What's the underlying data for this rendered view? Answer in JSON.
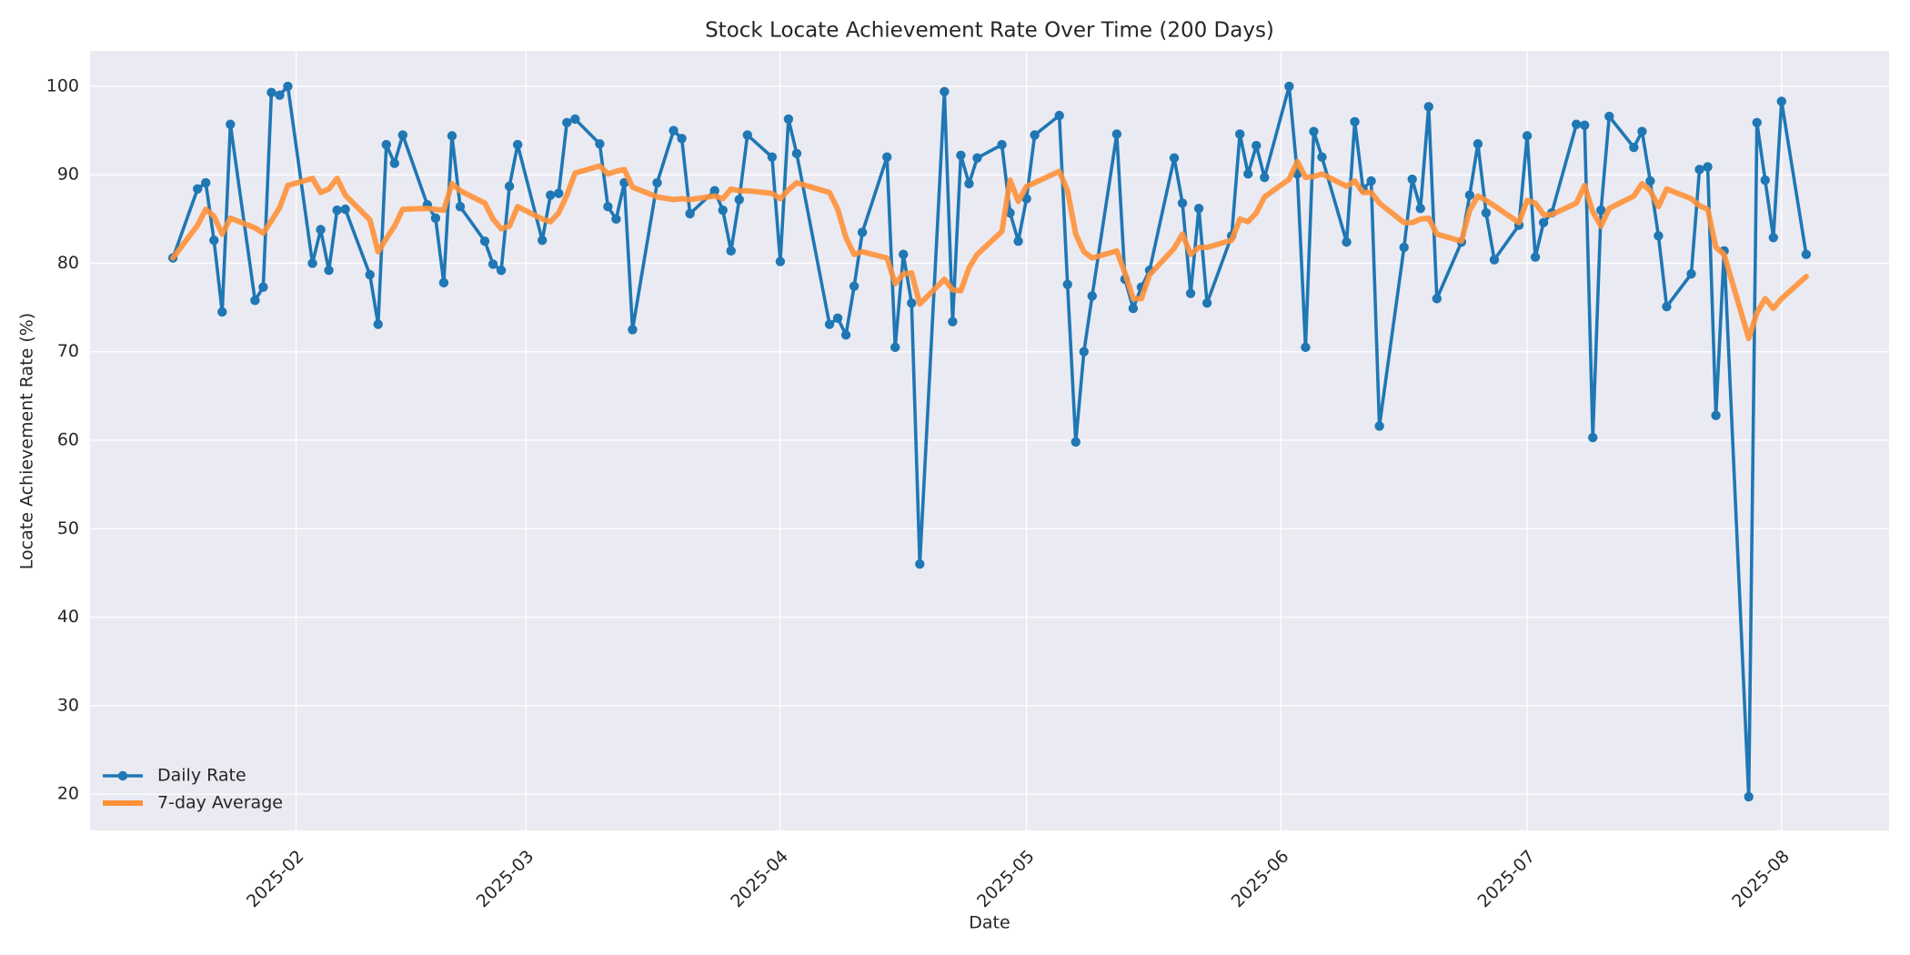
{
  "chart_data": {
    "type": "line",
    "title": "Stock Locate Achievement Rate Over Time (200 Days)",
    "x_label": "Date",
    "y_label": "Locate Achievement Rate (%)",
    "x": [
      17,
      20,
      21,
      22,
      23,
      24,
      27,
      28,
      29,
      30,
      31,
      34,
      35,
      36,
      37,
      38,
      41,
      42,
      43,
      44,
      45,
      48,
      49,
      50,
      51,
      52,
      55,
      56,
      57,
      58,
      59,
      62,
      63,
      64,
      65,
      66,
      69,
      70,
      71,
      72,
      73,
      76,
      78,
      79,
      80,
      83,
      84,
      85,
      86,
      87,
      90,
      91,
      92,
      93,
      97,
      98,
      99,
      100,
      101,
      104,
      105,
      106,
      107,
      108,
      111,
      112,
      113,
      114,
      115,
      118,
      119,
      120,
      121,
      122,
      125,
      126,
      127,
      128,
      129,
      132,
      133,
      134,
      135,
      136,
      139,
      140,
      141,
      142,
      143,
      146,
      147,
      148,
      149,
      150,
      153,
      154,
      155,
      156,
      157,
      160,
      161,
      162,
      163,
      164,
      167,
      168,
      169,
      170,
      171,
      174,
      175,
      176,
      177,
      178,
      181,
      182,
      183,
      184,
      185,
      188,
      189,
      190,
      191,
      192,
      195,
      196,
      197,
      198,
      199,
      202,
      203,
      204,
      205,
      206,
      209,
      210,
      211,
      212,
      213,
      216
    ],
    "series": [
      {
        "name": "Daily Rate",
        "color": "#1f77b4",
        "marker": true,
        "values": [
          80.6,
          88.4,
          89.1,
          82.6,
          74.5,
          95.7,
          75.8,
          77.3,
          99.3,
          99.0,
          100,
          80.0,
          83.8,
          79.2,
          86.0,
          86.1,
          78.7,
          73.1,
          93.4,
          91.3,
          94.5,
          86.6,
          85.1,
          77.8,
          94.4,
          86.4,
          82.5,
          79.9,
          79.2,
          88.7,
          93.4,
          82.6,
          87.7,
          87.9,
          95.9,
          96.3,
          93.5,
          86.4,
          85.0,
          89.1,
          72.5,
          89.1,
          95.0,
          94.1,
          85.6,
          88.2,
          86.0,
          81.4,
          87.2,
          94.5,
          92.0,
          80.2,
          96.3,
          92.4,
          73.1,
          73.8,
          71.9,
          77.4,
          83.5,
          92.0,
          70.5,
          81.0,
          75.5,
          46.0,
          99.4,
          73.4,
          92.2,
          89.0,
          91.9,
          93.4,
          85.7,
          82.5,
          87.3,
          94.5,
          96.7,
          77.6,
          59.8,
          70.0,
          76.3,
          94.6,
          78.2,
          74.9,
          77.3,
          79.2,
          91.9,
          86.8,
          76.6,
          86.2,
          75.5,
          83.1,
          94.6,
          90.1,
          93.3,
          89.7,
          100,
          90.1,
          70.5,
          94.9,
          92.0,
          82.4,
          96.0,
          88.4,
          89.3,
          61.6,
          81.8,
          89.5,
          86.2,
          97.7,
          76.0,
          82.4,
          87.7,
          93.5,
          85.7,
          80.4,
          84.3,
          94.4,
          80.7,
          84.6,
          85.7,
          95.7,
          95.6,
          60.3,
          86.0,
          96.6,
          93.1,
          94.9,
          89.3,
          83.1,
          75.1,
          78.8,
          90.6,
          90.9,
          62.8,
          81.4,
          19.7,
          95.9,
          89.4,
          82.9,
          98.3,
          81.0
        ]
      },
      {
        "name": "7-day Average",
        "color": "#ff9138",
        "marker": false,
        "values": [
          80.6,
          84.3,
          86.1,
          85.3,
          83.3,
          85.1,
          84.0,
          83.4,
          84.8,
          86.3,
          88.8,
          89.6,
          88.0,
          88.4,
          89.6,
          87.7,
          84.9,
          81.3,
          82.8,
          84.2,
          86.1,
          86.2,
          86.1,
          86.0,
          89.0,
          88.2,
          86.8,
          85.0,
          83.9,
          84.2,
          86.4,
          85.0,
          84.7,
          85.7,
          87.7,
          90.2,
          91.0,
          90.1,
          90.4,
          90.6,
          88.6,
          87.5,
          87.2,
          87.3,
          87.2,
          87.6,
          87.3,
          88.4,
          88.2,
          88.2,
          87.9,
          87.3,
          88.3,
          89.1,
          88.0,
          86.1,
          82.9,
          81.0,
          81.3,
          80.6,
          77.7,
          78.8,
          78.9,
          75.4,
          78.2,
          77.0,
          76.9,
          79.5,
          81.0,
          83.6,
          89.4,
          87.0,
          88.7,
          89.1,
          90.4,
          88.2,
          83.3,
          81.3,
          80.6,
          81.4,
          78.9,
          76.0,
          76.0,
          78.7,
          81.7,
          83.3,
          81.0,
          81.8,
          81.8,
          82.6,
          85.0,
          84.7,
          85.7,
          87.5,
          89.5,
          91.5,
          89.7,
          89.8,
          90.1,
          88.7,
          89.3,
          88.0,
          88.0,
          86.8,
          84.6,
          84.6,
          85.0,
          85.1,
          83.3,
          82.5,
          86.0,
          87.6,
          87.1,
          86.5,
          84.6,
          87.1,
          86.8,
          85.5,
          85.5,
          86.8,
          88.8,
          85.8,
          84.2,
          86.2,
          87.6,
          89.0,
          88.2,
          86.4,
          88.4,
          87.3,
          86.5,
          86.1,
          81.8,
          81.0,
          71.5,
          74.4,
          76.0,
          74.9,
          76.0,
          78.5
        ]
      }
    ],
    "xlim": [
      6.9,
      226.1
    ],
    "xticks": [
      {
        "value": 32,
        "label": "2025-02"
      },
      {
        "value": 60,
        "label": "2025-03"
      },
      {
        "value": 91,
        "label": "2025-04"
      },
      {
        "value": 121,
        "label": "2025-05"
      },
      {
        "value": 152,
        "label": "2025-06"
      },
      {
        "value": 182,
        "label": "2025-07"
      },
      {
        "value": 213,
        "label": "2025-08"
      }
    ],
    "ylim": [
      15.9,
      104
    ],
    "yticks": [
      20,
      30,
      40,
      50,
      60,
      70,
      80,
      90,
      100
    ],
    "grid": true,
    "legend": "lower left"
  }
}
